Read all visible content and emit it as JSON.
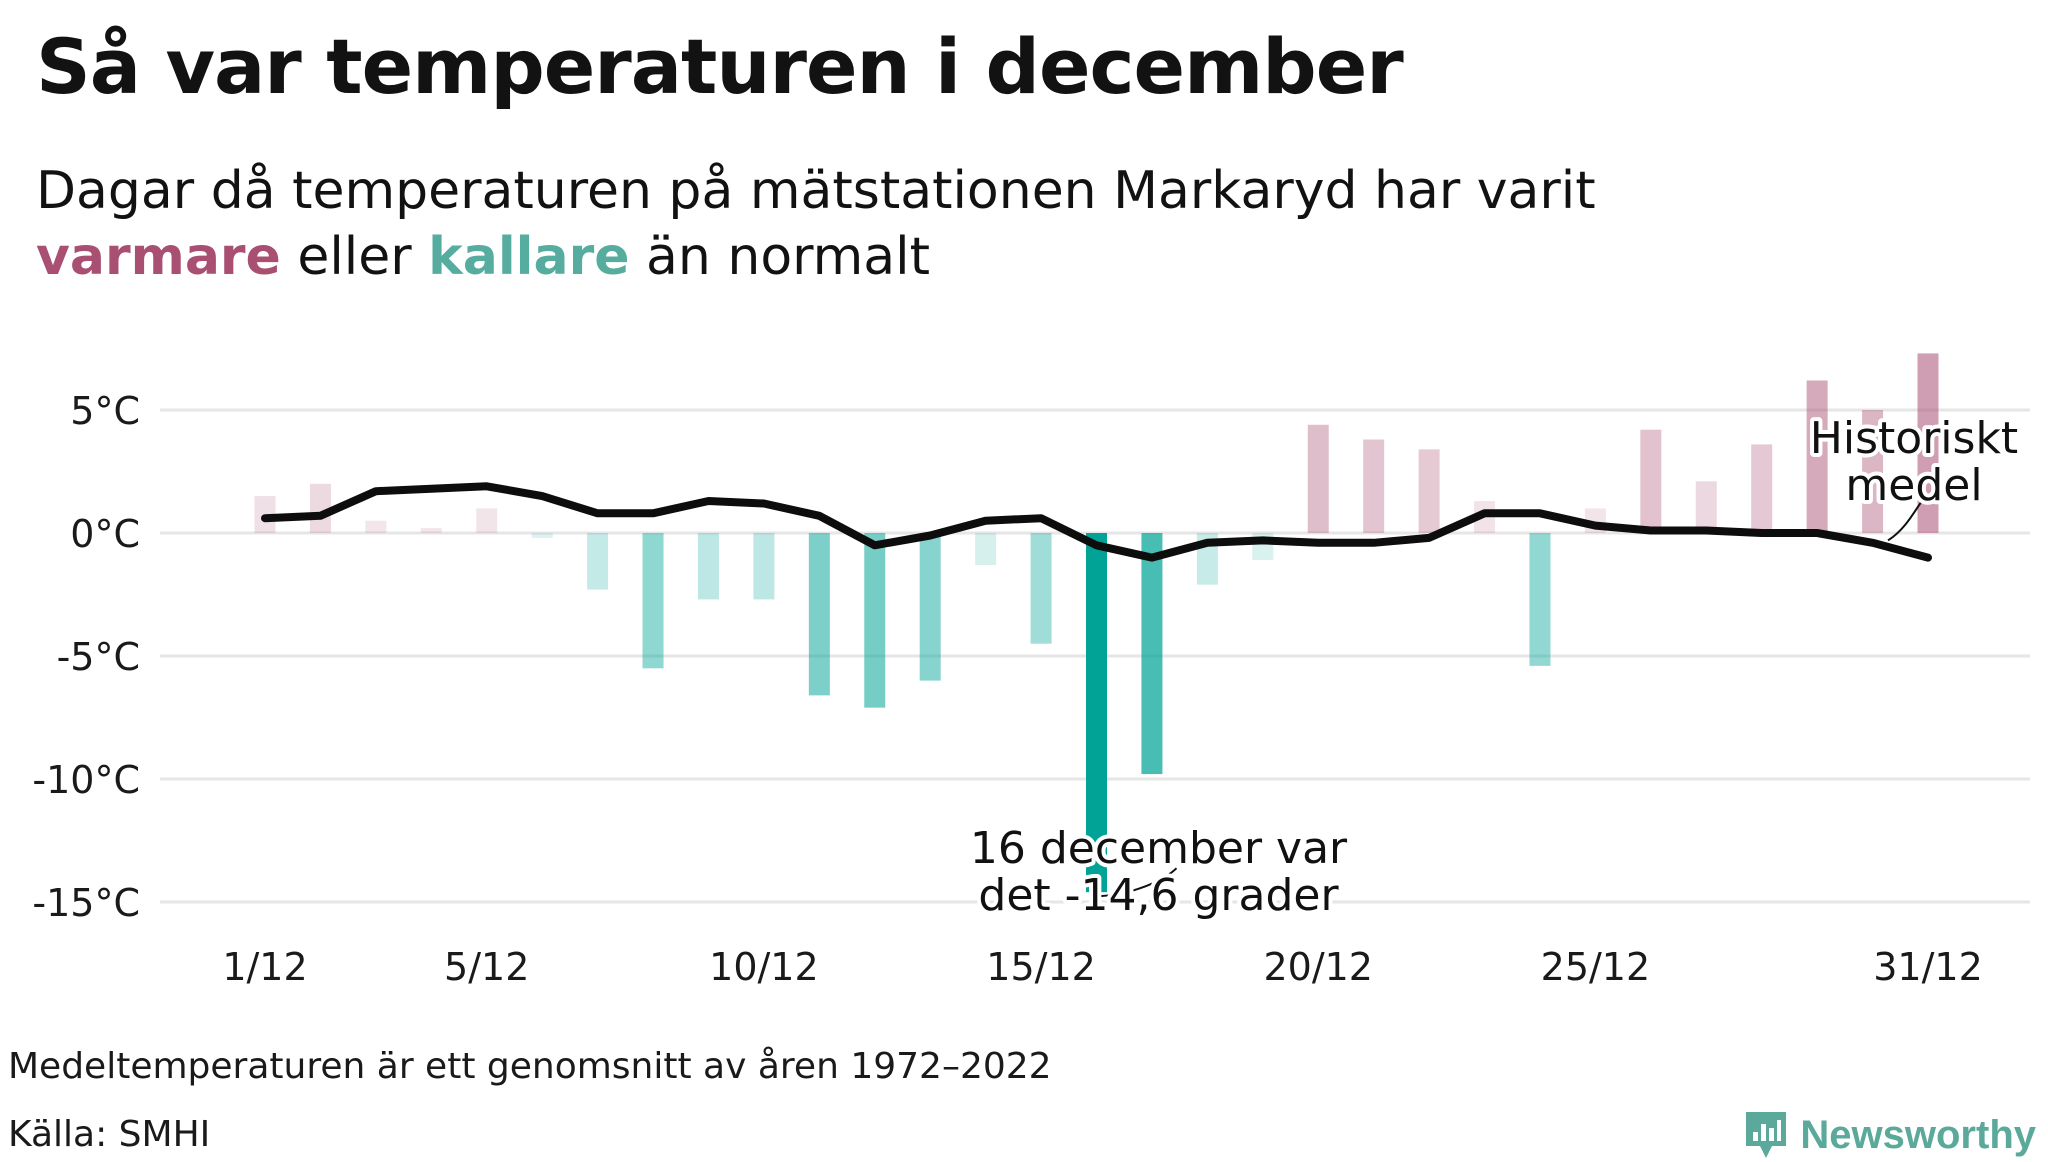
{
  "header": {
    "title": "Så var temperaturen i december",
    "subtitle_line1": "Dagar då temperaturen på mätstationen Markaryd har varit",
    "subtitle_warm": "varmare",
    "subtitle_mid": "eller",
    "subtitle_cold": "kallare",
    "subtitle_end": "än normalt"
  },
  "colors": {
    "warm": "#a84f72",
    "cold": "#00a396",
    "mean_line": "#0d0d0d",
    "grid": "#e6e6e6"
  },
  "chart_data": {
    "type": "bar",
    "categories": [
      "1/12",
      "2/12",
      "3/12",
      "4/12",
      "5/12",
      "6/12",
      "7/12",
      "8/12",
      "9/12",
      "10/12",
      "11/12",
      "12/12",
      "13/12",
      "14/12",
      "15/12",
      "16/12",
      "17/12",
      "18/12",
      "19/12",
      "20/12",
      "21/12",
      "22/12",
      "23/12",
      "24/12",
      "25/12",
      "26/12",
      "27/12",
      "28/12",
      "29/12",
      "30/12",
      "31/12"
    ],
    "x_tick_labels": [
      "1/12",
      "5/12",
      "10/12",
      "15/12",
      "20/12",
      "25/12",
      "31/12"
    ],
    "y_ticks": [
      5,
      0,
      -5,
      -10,
      -15
    ],
    "y_tick_labels": [
      "5°C",
      "0°C",
      "-5°C",
      "-10°C",
      "-15°C"
    ],
    "ylim": [
      -16.5,
      9
    ],
    "grid": true,
    "series": [
      {
        "name": "Historiskt medel",
        "type": "line",
        "values": [
          0.6,
          0.7,
          1.7,
          1.8,
          1.9,
          1.5,
          0.8,
          0.8,
          1.3,
          1.2,
          0.7,
          -0.5,
          -0.1,
          0.5,
          0.6,
          -0.5,
          -1.0,
          -0.4,
          -0.3,
          -0.4,
          -0.4,
          -0.2,
          0.8,
          0.8,
          0.3,
          0.1,
          0.1,
          0.0,
          0.0,
          -0.4,
          -1.0
        ]
      },
      {
        "name": "",
        "type": "bar",
        "values": [
          1.5,
          2.0,
          0.5,
          0.2,
          1.0,
          -0.2,
          -2.3,
          -5.5,
          -2.7,
          -2.7,
          -6.6,
          -7.1,
          -6.0,
          -1.3,
          -4.5,
          -14.6,
          -9.8,
          -2.1,
          -1.1,
          4.4,
          3.8,
          3.4,
          1.3,
          -5.4,
          1.0,
          4.2,
          2.1,
          3.6,
          6.2,
          5.0,
          7.3
        ]
      }
    ],
    "annotations": [
      {
        "line1": "16 december var",
        "line2": "det -14,6 grader",
        "category": "16/12"
      },
      {
        "line1": "Historiskt",
        "line2": "medel",
        "category": "31/12"
      }
    ]
  },
  "footer": {
    "note": "Medeltemperaturen är ett genomsnitt av åren 1972–2022",
    "source": "Källa: SMHI",
    "brand": "Newsworthy",
    "brand_icon": "newsworthy-logo-icon"
  }
}
